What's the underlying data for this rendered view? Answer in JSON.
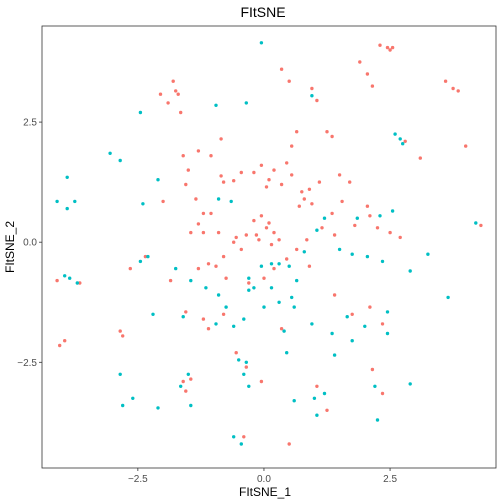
{
  "chart_data": {
    "type": "scatter",
    "title": "FItSNE",
    "xlabel": "FItSNE_1",
    "ylabel": "FItSNE_2",
    "xlim": [
      -4.4,
      4.6
    ],
    "ylim": [
      -4.7,
      4.5
    ],
    "x_ticks": [
      -2.5,
      0.0,
      2.5
    ],
    "y_ticks": [
      -2.5,
      0.0,
      2.5
    ],
    "x_tick_labels": [
      "−2.5",
      "0.0",
      "2.5"
    ],
    "y_tick_labels": [
      "−2.5",
      "0.0",
      "2.5"
    ],
    "grid": false,
    "legend": "none",
    "series": [
      {
        "color": "#F8766D",
        "points": [
          [
            -1.8,
            3.35
          ],
          [
            -2.05,
            3.08
          ],
          [
            -1.75,
            3.15
          ],
          [
            -1.7,
            3.08
          ],
          [
            -1.9,
            2.9
          ],
          [
            -1.65,
            2.7
          ],
          [
            -0.85,
            2.15
          ],
          [
            -1.3,
            1.9
          ],
          [
            -1.6,
            1.8
          ],
          [
            -1.05,
            1.8
          ],
          [
            -1.5,
            1.5
          ],
          [
            -0.85,
            1.38
          ],
          [
            -0.8,
            1.25
          ],
          [
            -0.6,
            1.28
          ],
          [
            -0.45,
            1.45
          ],
          [
            -0.2,
            1.45
          ],
          [
            -0.05,
            1.6
          ],
          [
            0.2,
            1.5
          ],
          [
            0.45,
            1.65
          ],
          [
            0.1,
            1.3
          ],
          [
            0.05,
            1.15
          ],
          [
            0.35,
            1.2
          ],
          [
            0.55,
            1.4
          ],
          [
            0.75,
            1.05
          ],
          [
            0.8,
            0.9
          ],
          [
            0.9,
            1.1
          ],
          [
            1.1,
            1.25
          ],
          [
            1.5,
            1.4
          ],
          [
            1.7,
            1.25
          ],
          [
            1.55,
            0.85
          ],
          [
            1.35,
            0.6
          ],
          [
            0.95,
            0.8
          ],
          [
            0.7,
            0.75
          ],
          [
            -2.0,
            0.85
          ],
          [
            -1.35,
            0.9
          ],
          [
            -1.2,
            0.6
          ],
          [
            -1.05,
            0.6
          ],
          [
            -1.3,
            0.38
          ],
          [
            -1.45,
            0.2
          ],
          [
            -1.2,
            0.2
          ],
          [
            -0.9,
            0.2
          ],
          [
            -0.55,
            0.1
          ],
          [
            -0.35,
            0.15
          ],
          [
            -0.15,
            0.15
          ],
          [
            0.05,
            0.3
          ],
          [
            0.2,
            0.2
          ],
          [
            0.3,
            0.05
          ],
          [
            0.15,
            -0.05
          ],
          [
            -0.05,
            0.55
          ],
          [
            -0.2,
            0.45
          ],
          [
            0.1,
            0.4
          ],
          [
            -0.1,
            0.05
          ],
          [
            -0.45,
            -0.15
          ],
          [
            -0.6,
            0.0
          ],
          [
            -0.8,
            -0.3
          ],
          [
            -0.95,
            -0.5
          ],
          [
            -1.1,
            -0.45
          ],
          [
            -1.3,
            -0.55
          ],
          [
            -0.75,
            -0.75
          ],
          [
            -0.3,
            -0.85
          ],
          [
            0.0,
            -0.75
          ],
          [
            0.2,
            -0.55
          ],
          [
            0.45,
            -0.35
          ],
          [
            0.65,
            -0.15
          ],
          [
            0.85,
            0.05
          ],
          [
            1.15,
            0.3
          ],
          [
            1.4,
            0.15
          ],
          [
            1.8,
            0.35
          ],
          [
            2.1,
            0.55
          ],
          [
            2.05,
            0.75
          ],
          [
            2.25,
            0.3
          ],
          [
            2.5,
            0.2
          ],
          [
            2.7,
            0.1
          ],
          [
            -2.35,
            -0.3
          ],
          [
            -2.65,
            -0.55
          ],
          [
            -1.85,
            -0.8
          ],
          [
            -1.55,
            -1.45
          ],
          [
            -1.2,
            -1.6
          ],
          [
            -0.8,
            -1.5
          ],
          [
            -1.1,
            -1.8
          ],
          [
            -0.55,
            -2.3
          ],
          [
            -0.35,
            -2.6
          ],
          [
            -0.05,
            -2.9
          ],
          [
            0.35,
            -1.8
          ],
          [
            0.9,
            -0.5
          ],
          [
            1.4,
            -1.1
          ],
          [
            1.75,
            -1.5
          ],
          [
            2.1,
            -1.35
          ],
          [
            2.35,
            -1.7
          ],
          [
            2.15,
            -2.65
          ],
          [
            2.35,
            -3.15
          ],
          [
            1.25,
            -3.5
          ],
          [
            1.05,
            -3.0
          ],
          [
            0.5,
            -4.2
          ],
          [
            -0.4,
            -4.05
          ],
          [
            -1.6,
            -2.9
          ],
          [
            -1.45,
            -2.85
          ],
          [
            -1.55,
            -3.1
          ],
          [
            -2.85,
            -1.85
          ],
          [
            -2.8,
            -1.95
          ],
          [
            -3.95,
            -2.05
          ],
          [
            -4.05,
            -2.15
          ],
          [
            -3.65,
            -0.85
          ],
          [
            -4.1,
            -0.8
          ],
          [
            0.35,
            3.6
          ],
          [
            0.5,
            3.35
          ],
          [
            0.95,
            3.2
          ],
          [
            1.05,
            2.95
          ],
          [
            1.25,
            2.3
          ],
          [
            1.35,
            2.2
          ],
          [
            0.65,
            2.3
          ],
          [
            0.55,
            2.0
          ],
          [
            1.9,
            3.75
          ],
          [
            2.05,
            3.5
          ],
          [
            2.15,
            3.25
          ],
          [
            2.3,
            4.1
          ],
          [
            2.45,
            4.05
          ],
          [
            2.5,
            4.0
          ],
          [
            2.55,
            4.05
          ],
          [
            2.8,
            2.1
          ],
          [
            3.1,
            1.75
          ],
          [
            3.6,
            3.35
          ],
          [
            3.75,
            3.2
          ],
          [
            3.85,
            3.15
          ],
          [
            4.0,
            2.0
          ],
          [
            -1.55,
            1.2
          ],
          [
            4.3,
            0.35
          ]
        ]
      },
      {
        "color": "#00BFC4",
        "points": [
          [
            -0.05,
            4.15
          ],
          [
            -0.35,
            2.9
          ],
          [
            -0.95,
            2.85
          ],
          [
            -2.45,
            2.7
          ],
          [
            -3.05,
            1.85
          ],
          [
            -2.85,
            1.7
          ],
          [
            -2.1,
            1.3
          ],
          [
            -3.9,
            1.35
          ],
          [
            -4.1,
            0.85
          ],
          [
            -3.9,
            0.7
          ],
          [
            -3.75,
            0.85
          ],
          [
            -2.4,
            0.8
          ],
          [
            -2.3,
            -0.3
          ],
          [
            -2.45,
            -0.4
          ],
          [
            -1.75,
            -0.55
          ],
          [
            -1.45,
            -0.8
          ],
          [
            -1.15,
            -0.95
          ],
          [
            -0.9,
            -1.1
          ],
          [
            -0.75,
            -1.35
          ],
          [
            -0.95,
            -1.7
          ],
          [
            -0.6,
            -1.75
          ],
          [
            -0.2,
            -0.95
          ],
          [
            -0.3,
            -0.75
          ],
          [
            -0.05,
            -0.5
          ],
          [
            0.15,
            -0.45
          ],
          [
            0.3,
            -0.45
          ],
          [
            0.5,
            -0.5
          ],
          [
            0.65,
            -0.8
          ],
          [
            0.55,
            -1.15
          ],
          [
            0.3,
            -1.25
          ],
          [
            0.0,
            -1.35
          ],
          [
            -0.4,
            -1.6
          ],
          [
            -0.5,
            -2.45
          ],
          [
            -0.35,
            -2.5
          ],
          [
            -0.4,
            -2.75
          ],
          [
            -0.3,
            -3.0
          ],
          [
            0.8,
            -0.2
          ],
          [
            1.05,
            0.25
          ],
          [
            1.2,
            0.5
          ],
          [
            1.5,
            -0.15
          ],
          [
            1.75,
            -0.25
          ],
          [
            1.85,
            0.5
          ],
          [
            2.3,
            0.55
          ],
          [
            2.55,
            0.65
          ],
          [
            2.05,
            -0.3
          ],
          [
            2.35,
            -0.4
          ],
          [
            3.25,
            -0.25
          ],
          [
            2.9,
            -0.6
          ],
          [
            3.65,
            -1.15
          ],
          [
            2.45,
            -1.45
          ],
          [
            2.0,
            -1.75
          ],
          [
            1.75,
            -2.05
          ],
          [
            1.35,
            -1.9
          ],
          [
            0.95,
            -1.7
          ],
          [
            0.6,
            -1.35
          ],
          [
            0.4,
            -1.85
          ],
          [
            0.45,
            -2.3
          ],
          [
            0.6,
            -3.3
          ],
          [
            1.0,
            -3.25
          ],
          [
            1.2,
            -3.15
          ],
          [
            1.05,
            -3.6
          ],
          [
            2.25,
            -3.7
          ],
          [
            2.9,
            -2.95
          ],
          [
            1.4,
            -2.35
          ],
          [
            2.2,
            -3.0
          ],
          [
            -0.45,
            -4.2
          ],
          [
            -0.6,
            -4.05
          ],
          [
            -1.5,
            -2.75
          ],
          [
            -1.65,
            -3.0
          ],
          [
            -1.45,
            -3.4
          ],
          [
            -2.1,
            -3.45
          ],
          [
            -2.8,
            -3.4
          ],
          [
            -2.6,
            -3.25
          ],
          [
            -2.85,
            -2.75
          ],
          [
            -3.7,
            -0.85
          ],
          [
            -3.85,
            -0.75
          ],
          [
            -3.95,
            -0.7
          ],
          [
            -0.9,
            0.9
          ],
          [
            -0.65,
            0.85
          ],
          [
            2.7,
            2.15
          ],
          [
            2.75,
            2.05
          ],
          [
            2.6,
            2.25
          ],
          [
            4.2,
            0.4
          ],
          [
            0.95,
            3.05
          ],
          [
            -1.6,
            -1.55
          ],
          [
            -2.2,
            -1.5
          ],
          [
            -0.3,
            -1.0
          ],
          [
            0.15,
            -0.95
          ],
          [
            1.65,
            -1.55
          ],
          [
            2.45,
            -1.9
          ]
        ]
      }
    ]
  }
}
